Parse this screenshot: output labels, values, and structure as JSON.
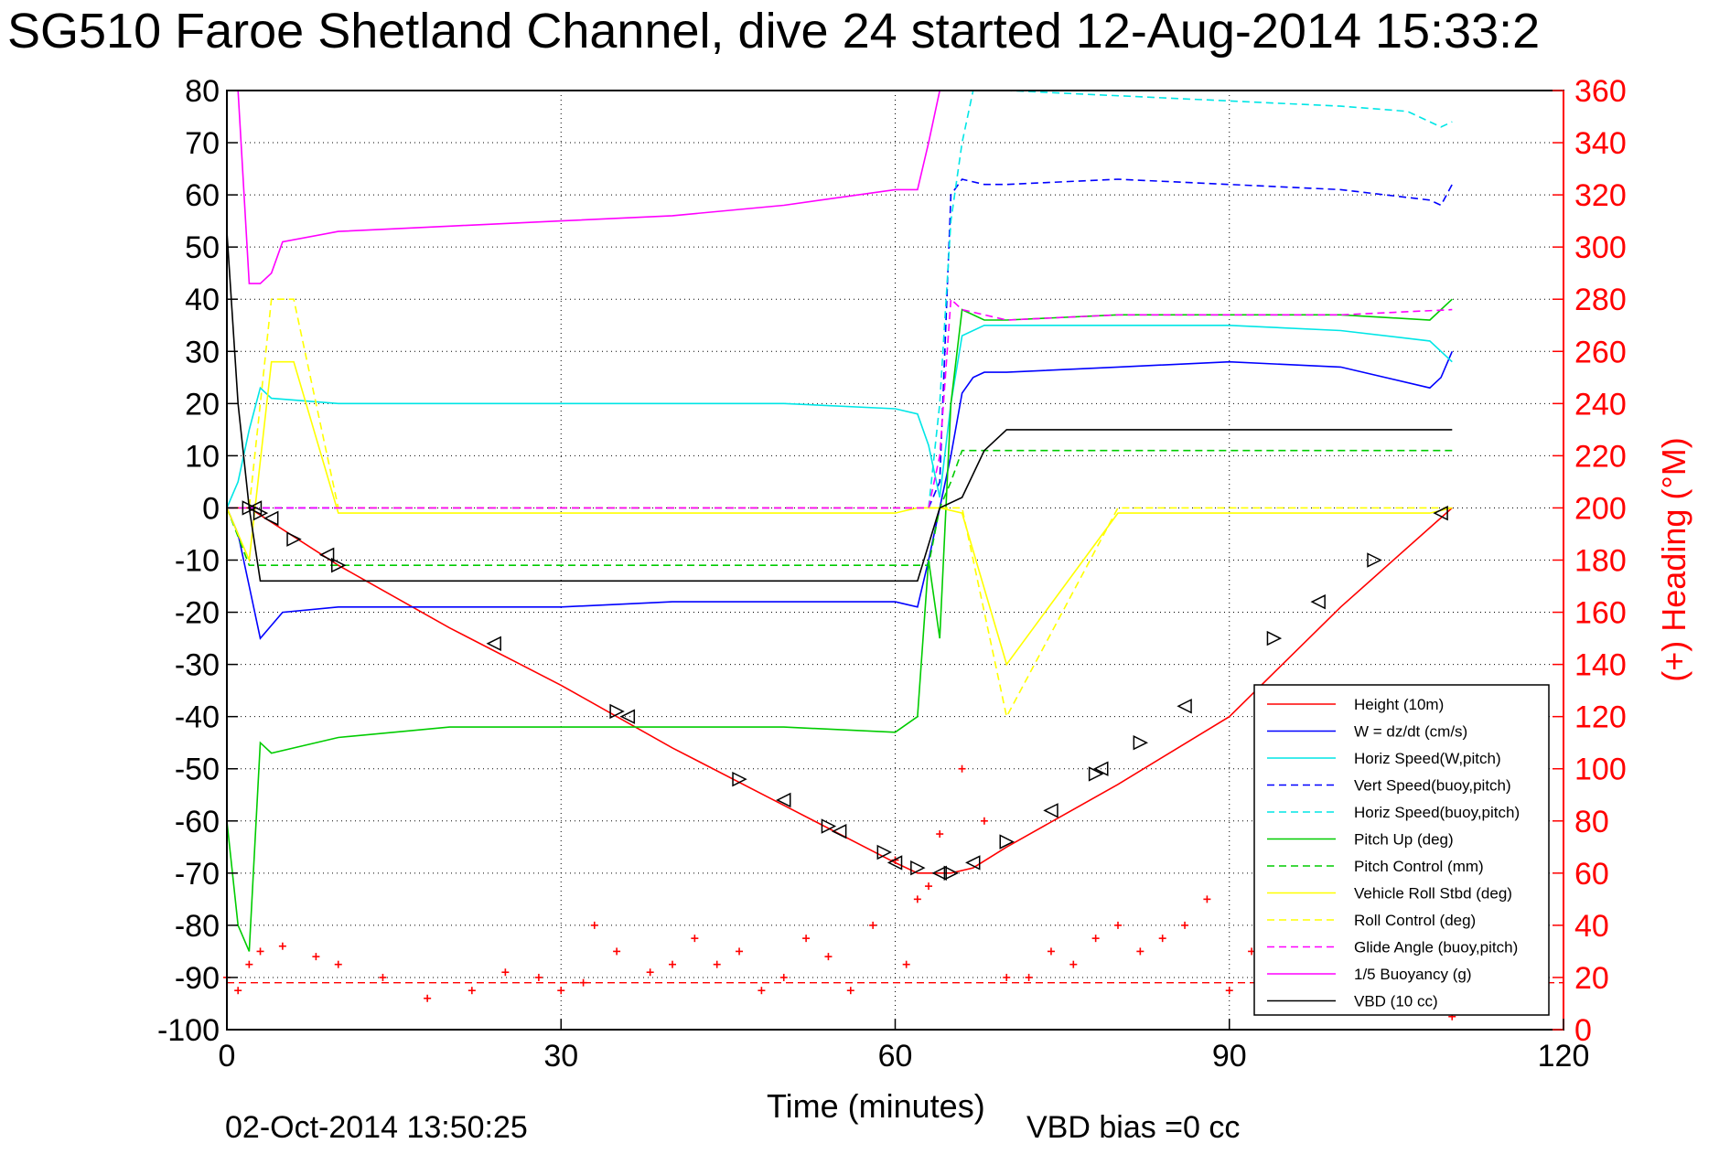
{
  "chart_data": {
    "type": "line",
    "title": "SG510 Faroe Shetland Channel, dive 24 started 12-Aug-2014 15:33:2",
    "xlabel": "Time (minutes)",
    "ylabel_right": "(+) Heading (°M)",
    "footer_date": "02-Oct-2014 13:50:25",
    "footer_note": "VBD bias =0 cc",
    "xlim": [
      0,
      120
    ],
    "ylim_left": [
      -100,
      80
    ],
    "ylim_right": [
      0,
      360
    ],
    "grid": true,
    "legend_position": "lower-right",
    "x_ticks": [
      "0",
      "30",
      "60",
      "90",
      "120"
    ],
    "y_ticks_left": [
      "80",
      "70",
      "60",
      "50",
      "40",
      "30",
      "20",
      "10",
      "0",
      "-10",
      "-20",
      "-30",
      "-40",
      "-50",
      "-60",
      "-70",
      "-80",
      "-90",
      "-100"
    ],
    "y_ticks_right": [
      "360",
      "340",
      "320",
      "300",
      "280",
      "260",
      "240",
      "220",
      "200",
      "180",
      "160",
      "140",
      "120",
      "100",
      "80",
      "60",
      "40",
      "20",
      "0"
    ],
    "series": [
      {
        "name": "Height (10m)",
        "color": "#ff0000",
        "style": "solid",
        "x": [
          0,
          2,
          10,
          20,
          30,
          40,
          50,
          60,
          62,
          65,
          67,
          70,
          80,
          90,
          100,
          110
        ],
        "y": [
          0,
          0,
          -11,
          -23,
          -34,
          -46,
          -57,
          -68,
          -70,
          -70,
          -69,
          -65,
          -53,
          -40,
          -19,
          0
        ]
      },
      {
        "name": "W = dz/dt (cm/s)",
        "color": "#0000ff",
        "style": "solid",
        "x": [
          0,
          1,
          2,
          3,
          5,
          10,
          20,
          30,
          40,
          50,
          60,
          62,
          63,
          65,
          66,
          67,
          68,
          70,
          80,
          90,
          100,
          108,
          109,
          110
        ],
        "y": [
          0,
          -5,
          -15,
          -25,
          -20,
          -19,
          -19,
          -19,
          -18,
          -18,
          -18,
          -19,
          -10,
          10,
          22,
          25,
          26,
          26,
          27,
          28,
          27,
          23,
          25,
          30
        ]
      },
      {
        "name": "Horiz Speed(W,pitch)",
        "color": "#00e6e6",
        "style": "solid",
        "x": [
          0,
          1,
          2,
          3,
          4,
          10,
          20,
          30,
          40,
          50,
          60,
          62,
          63,
          64,
          65,
          66,
          68,
          70,
          80,
          90,
          100,
          108,
          110
        ],
        "y": [
          0,
          5,
          15,
          23,
          21,
          20,
          20,
          20,
          20,
          20,
          19,
          18,
          12,
          2,
          20,
          33,
          35,
          35,
          35,
          35,
          34,
          32,
          28
        ]
      },
      {
        "name": "Vert Speed(buoy,pitch)",
        "color": "#0000ff",
        "style": "dashed",
        "x": [
          0,
          1,
          63,
          64,
          65,
          66,
          68,
          70,
          80,
          90,
          100,
          108,
          109,
          110
        ],
        "y": [
          0,
          0,
          0,
          5,
          60,
          63,
          62,
          62,
          63,
          62,
          61,
          59,
          58,
          62
        ]
      },
      {
        "name": "Horiz Speed(buoy,pitch)",
        "color": "#00e6e6",
        "style": "dashed",
        "x": [
          63,
          64,
          65,
          66,
          67,
          70,
          80,
          90,
          100,
          106,
          108,
          109,
          110
        ],
        "y": [
          0,
          20,
          55,
          70,
          80,
          80,
          79,
          78,
          77,
          76,
          74,
          73,
          74
        ]
      },
      {
        "name": "Pitch Up (deg)",
        "color": "#00cc00",
        "style": "solid",
        "x": [
          0,
          1,
          2,
          3,
          4,
          10,
          20,
          30,
          40,
          50,
          60,
          62,
          63,
          64,
          65,
          66,
          68,
          70,
          80,
          90,
          100,
          108,
          110
        ],
        "y": [
          -60,
          -80,
          -85,
          -45,
          -47,
          -44,
          -42,
          -42,
          -42,
          -42,
          -43,
          -40,
          -10,
          -25,
          20,
          38,
          36,
          36,
          37,
          37,
          37,
          36,
          40
        ]
      },
      {
        "name": "Pitch Control (mm)",
        "color": "#00cc00",
        "style": "dashed",
        "x": [
          0,
          2,
          5,
          10,
          20,
          30,
          40,
          50,
          60,
          63,
          64,
          65,
          66,
          70,
          80,
          90,
          100,
          110
        ],
        "y": [
          0,
          -11,
          -11,
          -11,
          -11,
          -11,
          -11,
          -11,
          -11,
          -11,
          0,
          5,
          11,
          11,
          11,
          11,
          11,
          11
        ]
      },
      {
        "name": "Vehicle Roll Stbd (deg)",
        "color": "#ffff00",
        "style": "solid",
        "x": [
          0,
          2,
          4,
          6,
          10,
          20,
          30,
          40,
          50,
          60,
          62,
          64,
          66,
          70,
          80,
          90,
          100,
          108,
          110
        ],
        "y": [
          0,
          -10,
          28,
          28,
          -1,
          -1,
          -1,
          -1,
          -1,
          -1,
          0,
          0,
          -1,
          -30,
          -1,
          -1,
          -1,
          -1,
          0
        ]
      },
      {
        "name": "Roll Control (deg)",
        "color": "#ffff00",
        "style": "dashed",
        "x": [
          0,
          2,
          4,
          6,
          10,
          20,
          30,
          40,
          50,
          60,
          62,
          64,
          66,
          70,
          80,
          90,
          100,
          108,
          110
        ],
        "y": [
          0,
          0,
          40,
          40,
          0,
          0,
          0,
          0,
          0,
          0,
          0,
          0,
          0,
          -40,
          0,
          0,
          0,
          0,
          0
        ]
      },
      {
        "name": "Glide Angle (buoy,pitch)",
        "color": "#ff00ff",
        "style": "dashed",
        "x": [
          0,
          63,
          64,
          65,
          66,
          70,
          80,
          90,
          100,
          110
        ],
        "y": [
          0,
          0,
          10,
          40,
          38,
          36,
          37,
          37,
          37,
          38
        ]
      },
      {
        "name": "1/5 Buoyancy (g)",
        "color": "#ff00ff",
        "style": "solid",
        "x": [
          1,
          2,
          3,
          4,
          5,
          10,
          20,
          30,
          40,
          50,
          60,
          62,
          63,
          64
        ],
        "y": [
          80,
          43,
          43,
          45,
          51,
          53,
          54,
          55,
          56,
          58,
          61,
          61,
          70,
          80
        ]
      },
      {
        "name": "VBD (10 cc)",
        "color": "#000000",
        "style": "solid",
        "x": [
          0,
          1,
          2,
          3,
          10,
          20,
          30,
          40,
          50,
          60,
          62,
          64,
          66,
          68,
          70,
          80,
          90,
          100,
          110
        ],
        "y": [
          53,
          20,
          0,
          -14,
          -14,
          -14,
          -14,
          -14,
          -14,
          -14,
          -14,
          0,
          2,
          11,
          15,
          15,
          15,
          15,
          15
        ]
      }
    ],
    "heading": {
      "axis": "right",
      "color": "#ff0000",
      "marker": "+",
      "x": [
        0,
        1,
        2,
        3,
        5,
        8,
        10,
        14,
        18,
        22,
        25,
        28,
        30,
        32,
        33,
        35,
        38,
        40,
        42,
        44,
        46,
        48,
        50,
        52,
        54,
        56,
        58,
        60,
        61,
        62,
        63,
        64,
        66,
        68,
        70,
        72,
        74,
        76,
        78,
        80,
        82,
        84,
        86,
        88,
        90,
        92,
        95,
        98,
        100,
        103,
        106,
        108,
        110
      ],
      "y": [
        20,
        15,
        25,
        30,
        32,
        28,
        25,
        20,
        12,
        15,
        22,
        20,
        15,
        18,
        40,
        30,
        22,
        25,
        35,
        25,
        30,
        15,
        20,
        35,
        28,
        15,
        40,
        65,
        25,
        50,
        55,
        75,
        100,
        80,
        20,
        20,
        30,
        25,
        35,
        40,
        30,
        35,
        40,
        50,
        15,
        30,
        35,
        25,
        30,
        20,
        15,
        10,
        5
      ]
    },
    "heading_reference": {
      "value": 18,
      "color": "#ff0000",
      "style": "dashed"
    },
    "dive_markers": {
      "color": "#000000",
      "x": [
        2,
        2.5,
        3,
        4,
        6,
        9,
        10,
        24,
        35,
        36,
        46,
        50,
        54,
        55,
        59,
        60,
        62,
        64,
        65,
        67,
        70,
        74,
        78,
        78.5,
        82,
        86,
        94,
        98,
        103,
        109
      ],
      "y": [
        0,
        0,
        -1,
        -2,
        -6,
        -9,
        -11,
        -26,
        -39,
        -40,
        -52,
        -56,
        -61,
        -62,
        -66,
        -68,
        -69,
        -70,
        -70,
        -68,
        -64,
        -58,
        -51,
        -50,
        -45,
        -38,
        -25,
        -18,
        -10,
        -1
      ]
    }
  },
  "legend": {
    "entries": [
      {
        "label": "Height (10m)",
        "color": "#ff0000",
        "style": "solid"
      },
      {
        "label": "W = dz/dt (cm/s)",
        "color": "#0000ff",
        "style": "solid"
      },
      {
        "label": "Horiz Speed(W,pitch)",
        "color": "#00e6e6",
        "style": "solid"
      },
      {
        "label": "Vert Speed(buoy,pitch)",
        "color": "#0000ff",
        "style": "dashed"
      },
      {
        "label": "Horiz Speed(buoy,pitch)",
        "color": "#00e6e6",
        "style": "dashed"
      },
      {
        "label": "Pitch Up (deg)",
        "color": "#00cc00",
        "style": "solid"
      },
      {
        "label": "Pitch Control (mm)",
        "color": "#00cc00",
        "style": "dashed"
      },
      {
        "label": "Vehicle Roll Stbd (deg)",
        "color": "#ffff00",
        "style": "solid"
      },
      {
        "label": "Roll Control (deg)",
        "color": "#ffff00",
        "style": "dashed"
      },
      {
        "label": "Glide Angle (buoy,pitch)",
        "color": "#ff00ff",
        "style": "dashed"
      },
      {
        "label": "1/5 Buoyancy (g)",
        "color": "#ff00ff",
        "style": "solid"
      },
      {
        "label": "VBD (10 cc)",
        "color": "#000000",
        "style": "solid"
      }
    ]
  }
}
